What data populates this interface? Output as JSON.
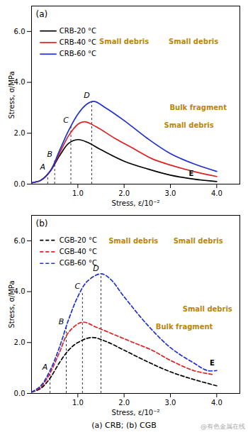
{
  "chart_data": [
    {
      "type": "line",
      "title": "(a)",
      "x_label": "Stress, ε/10⁻²",
      "y_label": "Stress, σ/MPa",
      "xlim": [
        0,
        4.5
      ],
      "ylim": [
        0,
        7
      ],
      "xticks": [
        1,
        2,
        3,
        4
      ],
      "yticks": [
        0,
        2,
        4,
        6
      ],
      "legend": "top-left",
      "series": [
        {
          "name": "CRB-20 °C",
          "color": "#000000",
          "line_style": "solid",
          "x": [
            0,
            0.2,
            0.4,
            0.6,
            0.8,
            1.0,
            1.2,
            1.5,
            2.0,
            2.5,
            3.0,
            3.5,
            4.0
          ],
          "values": [
            0.05,
            0.15,
            0.5,
            1.1,
            1.6,
            1.75,
            1.65,
            1.35,
            0.9,
            0.6,
            0.35,
            0.2,
            0.1
          ]
        },
        {
          "name": "CRB-40 °C",
          "color": "#e02020",
          "line_style": "solid",
          "x": [
            0,
            0.2,
            0.4,
            0.6,
            0.8,
            1.0,
            1.15,
            1.4,
            1.8,
            2.2,
            2.6,
            3.0,
            3.5,
            4.0
          ],
          "values": [
            0.05,
            0.15,
            0.5,
            1.2,
            1.9,
            2.35,
            2.45,
            2.25,
            1.8,
            1.4,
            1.0,
            0.75,
            0.5,
            0.3
          ]
        },
        {
          "name": "CRB-60 °C",
          "color": "#2030d0",
          "line_style": "solid",
          "x": [
            0,
            0.2,
            0.4,
            0.6,
            0.8,
            1.0,
            1.2,
            1.35,
            1.6,
            2.0,
            2.5,
            3.0,
            3.5,
            4.0
          ],
          "values": [
            0.05,
            0.15,
            0.5,
            1.3,
            2.1,
            2.75,
            3.15,
            3.25,
            3.0,
            2.5,
            1.8,
            1.2,
            0.8,
            0.5
          ]
        }
      ],
      "markers": [
        {
          "label": "A",
          "x": 0.35,
          "y": 0.45
        },
        {
          "label": "B",
          "x": 0.5,
          "y": 0.95
        },
        {
          "label": "C",
          "x": 0.85,
          "y": 2.3
        },
        {
          "label": "D",
          "x": 1.3,
          "y": 3.25
        }
      ],
      "annotations": [
        {
          "text": "E",
          "x": 3.45,
          "y": 0.4,
          "color": "#000000"
        },
        {
          "text": "Small debris",
          "x": 2.0,
          "y": 5.6,
          "color": "#b8860b"
        },
        {
          "text": "Small debris",
          "x": 3.5,
          "y": 5.6,
          "color": "#b8860b"
        },
        {
          "text": "Bulk fragment",
          "x": 3.6,
          "y": 3.0,
          "color": "#b8860b"
        },
        {
          "text": "Small debris",
          "x": 3.4,
          "y": 2.3,
          "color": "#b8860b"
        }
      ]
    },
    {
      "type": "line",
      "title": "(b)",
      "x_label": "Stress, ε/10⁻²",
      "y_label": "Stress, σ/MPa",
      "xlim": [
        0,
        4.5
      ],
      "ylim": [
        0,
        7
      ],
      "xticks": [
        1,
        2,
        3,
        4
      ],
      "yticks": [
        0,
        2,
        4,
        6
      ],
      "legend": "top-left",
      "series": [
        {
          "name": "CGB-20 °C",
          "color": "#000000",
          "line_style": "dashed",
          "x": [
            0,
            0.2,
            0.4,
            0.6,
            0.8,
            1.0,
            1.3,
            1.6,
            2.0,
            2.5,
            3.0,
            3.5,
            4.0
          ],
          "values": [
            0.05,
            0.2,
            0.6,
            1.2,
            1.7,
            2.0,
            2.2,
            2.05,
            1.7,
            1.25,
            0.85,
            0.55,
            0.3
          ]
        },
        {
          "name": "CGB-40 °C",
          "color": "#e02020",
          "line_style": "dashed",
          "x": [
            0,
            0.2,
            0.4,
            0.6,
            0.8,
            1.1,
            1.4,
            1.8,
            2.2,
            2.6,
            3.0,
            3.5,
            3.9
          ],
          "values": [
            0.05,
            0.25,
            0.8,
            1.6,
            2.4,
            2.8,
            2.6,
            2.3,
            2.0,
            1.7,
            1.3,
            0.9,
            0.75
          ]
        },
        {
          "name": "CGB-60 °C",
          "color": "#2030d0",
          "line_style": "dashed",
          "x": [
            0,
            0.2,
            0.4,
            0.6,
            0.8,
            1.0,
            1.2,
            1.5,
            1.7,
            2.0,
            2.5,
            3.0,
            3.5,
            3.8,
            4.0
          ],
          "values": [
            0.05,
            0.3,
            0.9,
            1.8,
            2.9,
            3.8,
            4.4,
            4.7,
            4.5,
            3.8,
            2.7,
            1.8,
            1.2,
            0.9,
            0.9
          ]
        }
      ],
      "markers": [
        {
          "label": "A",
          "x": 0.4,
          "y": 0.8
        },
        {
          "label": "B",
          "x": 0.75,
          "y": 2.6
        },
        {
          "label": "C",
          "x": 1.1,
          "y": 4.0
        },
        {
          "label": "D",
          "x": 1.5,
          "y": 4.7
        }
      ],
      "annotations": [
        {
          "text": "E",
          "x": 3.9,
          "y": 1.2,
          "color": "#000000"
        },
        {
          "text": "Small debris",
          "x": 2.2,
          "y": 6.0,
          "color": "#b8860b"
        },
        {
          "text": "Small debris",
          "x": 3.6,
          "y": 6.0,
          "color": "#b8860b"
        },
        {
          "text": "Small debris",
          "x": 3.8,
          "y": 3.3,
          "color": "#b8860b"
        },
        {
          "text": "Bulk fragment",
          "x": 3.3,
          "y": 2.6,
          "color": "#b8860b"
        }
      ]
    }
  ],
  "caption": "(a) CRB; (b) CGB",
  "watermark": "@有色金属在线"
}
